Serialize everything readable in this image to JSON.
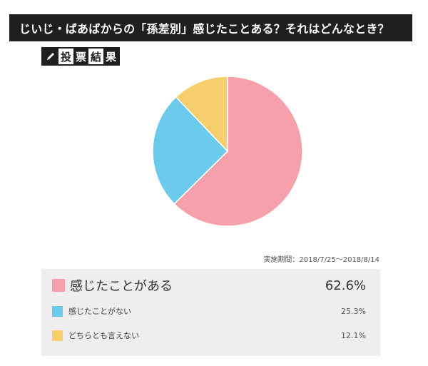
{
  "title": "じいじ・ばあばからの「孫差別」感じたことある？それはどんなとき？",
  "badge": {
    "icon": "pencil-icon",
    "chars": [
      "投",
      "票",
      "結",
      "果"
    ]
  },
  "period": "実施期間：2018/7/25〜2018/8/14",
  "legend": [
    {
      "label": "感じたことがある",
      "value": "62.6%",
      "color": "#f6a0ac"
    },
    {
      "label": "感じたことがない",
      "value": "25.3%",
      "color": "#6ccbec"
    },
    {
      "label": "どちらとも言えない",
      "value": "12.1%",
      "color": "#f7ce6c"
    }
  ],
  "chart_data": {
    "type": "pie",
    "title": "じいじ・ばあばからの「孫差別」感じたことある？それはどんなとき？",
    "categories": [
      "感じたことがある",
      "感じたことがない",
      "どちらとも言えない"
    ],
    "values": [
      62.6,
      25.3,
      12.1
    ],
    "unit": "%",
    "colors": [
      "#f6a0ac",
      "#6ccbec",
      "#f7ce6c"
    ],
    "start_angle": "12 o'clock, clockwise",
    "legend_position": "bottom",
    "annotation": "実施期間：2018/7/25〜2018/8/14"
  }
}
